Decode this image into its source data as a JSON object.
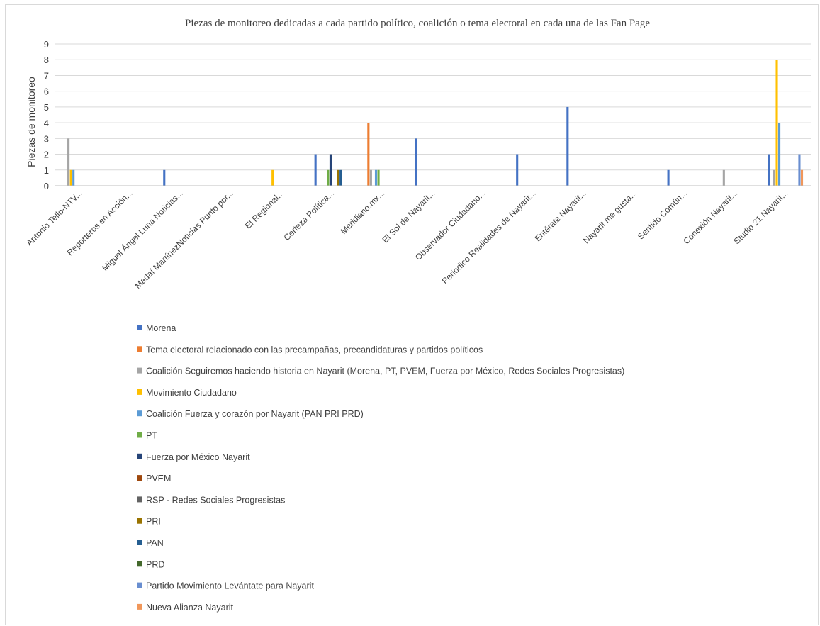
{
  "chart_data": {
    "type": "bar",
    "title": "Piezas de monitoreo dedicadas  a cada partido político, coalición o tema electoral en cada una de las Fan Page",
    "xlabel": "",
    "ylabel": "Piezas de monitoreo",
    "ylim": [
      0,
      9
    ],
    "yticks": [
      "0",
      "1",
      "2",
      "3",
      "4",
      "5",
      "6",
      "7",
      "8",
      "9"
    ],
    "grid": true,
    "legend_position": "bottom",
    "categories": [
      "Antonio Tello-NTV...",
      "Reporteros en Acción...",
      "Miguel Ángel Luna Noticias...",
      "Madaí MartínezNoticias Punto por...",
      "El Regional...",
      "Certeza Política...",
      "Meridiano.mx...",
      "El Sol de Nayarit...",
      "Observador Ciudadano...",
      "Periódico Realidades de Nayarit...",
      "Entérate Nayarit...",
      "Nayarit me gusta...",
      "Sentido Común...",
      "Conexión Nayarit...",
      "Studio 21 Nayarit..."
    ],
    "series": [
      {
        "name": "Morena",
        "color": "#4472c4",
        "values": [
          0,
          0,
          1,
          0,
          0,
          2,
          0,
          3,
          0,
          2,
          5,
          0,
          1,
          0,
          2
        ]
      },
      {
        "name": "Tema electoral relacionado con las precampañas, precandidaturas y partidos políticos",
        "color": "#ed7d31",
        "values": [
          0,
          0,
          0,
          0,
          0,
          0,
          4,
          0,
          0,
          0,
          0,
          0,
          0,
          0,
          0
        ]
      },
      {
        "name": "Coalición Seguiremos haciendo historia en Nayarit (Morena, PT, PVEM, Fuerza por México, Redes Sociales Progresistas)",
        "color": "#a5a5a5",
        "values": [
          3,
          0,
          0,
          0,
          0,
          0,
          1,
          0,
          0,
          0,
          0,
          0,
          0,
          1,
          1
        ]
      },
      {
        "name": "Movimiento Ciudadano",
        "color": "#ffc000",
        "values": [
          1,
          0,
          0,
          0,
          1,
          0,
          0,
          0,
          0,
          0,
          0,
          0,
          0,
          0,
          8
        ]
      },
      {
        "name": "Coalición Fuerza y corazón por Nayarit (PAN PRI PRD)",
        "color": "#5b9bd5",
        "values": [
          1,
          0,
          0,
          0,
          0,
          0,
          1,
          0,
          0,
          0,
          0,
          0,
          0,
          0,
          4
        ]
      },
      {
        "name": "PT",
        "color": "#70ad47",
        "values": [
          0,
          0,
          0,
          0,
          0,
          1,
          1,
          0,
          0,
          0,
          0,
          0,
          0,
          0,
          0
        ]
      },
      {
        "name": "Fuerza por México Nayarit",
        "color": "#264478",
        "values": [
          0,
          0,
          0,
          0,
          0,
          2,
          0,
          0,
          0,
          0,
          0,
          0,
          0,
          0,
          0
        ]
      },
      {
        "name": "PVEM",
        "color": "#9e480e",
        "values": [
          0,
          0,
          0,
          0,
          0,
          0,
          0,
          0,
          0,
          0,
          0,
          0,
          0,
          0,
          0
        ]
      },
      {
        "name": "RSP - Redes Sociales Progresistas",
        "color": "#636363",
        "values": [
          0,
          0,
          0,
          0,
          0,
          0,
          0,
          0,
          0,
          0,
          0,
          0,
          0,
          0,
          0
        ]
      },
      {
        "name": "PRI",
        "color": "#997300",
        "values": [
          0,
          0,
          0,
          0,
          0,
          1,
          0,
          0,
          0,
          0,
          0,
          0,
          0,
          0,
          0
        ]
      },
      {
        "name": "PAN",
        "color": "#255e91",
        "values": [
          0,
          0,
          0,
          0,
          0,
          1,
          0,
          0,
          0,
          0,
          0,
          0,
          0,
          0,
          0
        ]
      },
      {
        "name": "PRD",
        "color": "#43682b",
        "values": [
          0,
          0,
          0,
          0,
          0,
          0,
          0,
          0,
          0,
          0,
          0,
          0,
          0,
          0,
          0
        ]
      },
      {
        "name": "Partido Movimiento Levántate para Nayarit",
        "color": "#698ed0",
        "values": [
          0,
          0,
          0,
          0,
          0,
          0,
          0,
          0,
          0,
          0,
          0,
          0,
          0,
          0,
          2
        ]
      },
      {
        "name": "Nueva Alianza Nayarit",
        "color": "#f1975a",
        "values": [
          0,
          0,
          0,
          0,
          0,
          0,
          0,
          0,
          0,
          0,
          0,
          0,
          0,
          0,
          1
        ]
      }
    ]
  }
}
